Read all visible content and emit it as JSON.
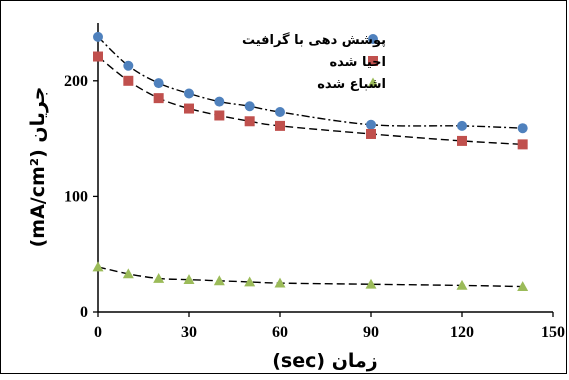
{
  "chart_data": {
    "type": "scatter",
    "xlabel": "زمان (sec)",
    "ylabel": "جریان (mA/cm²)",
    "xlim": [
      0,
      150
    ],
    "ylim": [
      0,
      250
    ],
    "x_ticks": [
      "0",
      "30",
      "60",
      "90",
      "120",
      "150"
    ],
    "y_ticks": [
      "0",
      "100",
      "200"
    ],
    "grid": false,
    "legend_position": "top-right",
    "series": [
      {
        "name": "پوشش دهی با گرافیت",
        "marker": "circle",
        "color": "#4f81bd",
        "line_style": "dash-dot",
        "x": [
          0,
          10,
          20,
          30,
          40,
          50,
          60,
          90,
          120,
          140
        ],
        "y": [
          238,
          213,
          198,
          189,
          182,
          178,
          173,
          162,
          161,
          159
        ]
      },
      {
        "name": "احیا شده",
        "marker": "square",
        "color": "#c0504d",
        "line_style": "dashed",
        "x": [
          0,
          10,
          20,
          30,
          40,
          50,
          60,
          90,
          120,
          140
        ],
        "y": [
          221,
          200,
          185,
          176,
          170,
          165,
          161,
          154,
          148,
          145
        ]
      },
      {
        "name": "اشباع شده",
        "marker": "triangle",
        "color": "#9bbb59",
        "line_style": "dashed",
        "x": [
          0,
          10,
          20,
          30,
          40,
          50,
          60,
          90,
          120,
          140
        ],
        "y": [
          39,
          33,
          29,
          28,
          27,
          26,
          25,
          24,
          23,
          22
        ]
      }
    ]
  }
}
